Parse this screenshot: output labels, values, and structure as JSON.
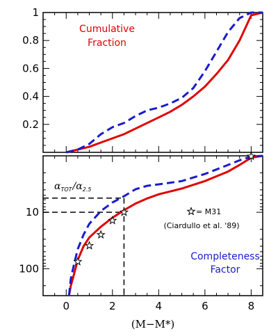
{
  "chart_data": [
    {
      "type": "line",
      "panel": "top",
      "xlim": [
        -1,
        8.5
      ],
      "ylim": [
        0,
        1
      ],
      "yticks": [
        "0.2",
        "0.4",
        "0.6",
        "0.8",
        "1"
      ],
      "annotation": [
        "Cumulative",
        "Fraction"
      ],
      "series": [
        {
          "style": "solid",
          "color": "#e00000",
          "x": [
            0,
            0.5,
            1,
            1.5,
            2,
            2.5,
            3,
            3.5,
            4,
            4.5,
            5,
            5.5,
            6,
            6.5,
            7,
            7.5,
            8,
            8.5
          ],
          "y": [
            0,
            0.02,
            0.04,
            0.07,
            0.1,
            0.13,
            0.17,
            0.21,
            0.25,
            0.29,
            0.34,
            0.4,
            0.47,
            0.56,
            0.66,
            0.8,
            0.98,
            1.0
          ]
        },
        {
          "style": "dashed",
          "color": "#1a1acc",
          "x": [
            0,
            0.5,
            1,
            1.5,
            2,
            2.5,
            3,
            3.5,
            4,
            4.5,
            5,
            5.5,
            6,
            6.5,
            7,
            7.5,
            8,
            8.5
          ],
          "y": [
            0,
            0.02,
            0.06,
            0.13,
            0.18,
            0.21,
            0.26,
            0.3,
            0.32,
            0.35,
            0.39,
            0.46,
            0.58,
            0.72,
            0.86,
            0.96,
            1.0,
            1.0
          ]
        }
      ]
    },
    {
      "type": "line",
      "panel": "bottom",
      "xlim": [
        -1,
        8.5
      ],
      "ylim": [
        1,
        300
      ],
      "yscale": "log",
      "y_inverted": true,
      "yticks": [
        "10",
        "100"
      ],
      "xticks": [
        "0",
        "2",
        "4",
        "6",
        "8"
      ],
      "xlabel": "(M−M*)",
      "ratio_label": {
        "main": "α",
        "num_sub": "TOT",
        "slash": "/",
        "den_sub": "2.5"
      },
      "legend_label": "= M31",
      "legend_ref": "(Ciardullo et al. '89)",
      "annotation": [
        "Completeness",
        "Factor"
      ],
      "guide_lines": {
        "x": 2.5,
        "y_red": 10,
        "y_blue": 5.6
      },
      "series": [
        {
          "style": "solid",
          "color": "#e00000",
          "x": [
            0.12,
            0.2,
            0.35,
            0.5,
            0.75,
            1.0,
            1.5,
            2.0,
            2.5,
            3.0,
            3.5,
            4.0,
            5.0,
            6.0,
            7.0,
            7.5,
            8.0,
            8.5
          ],
          "y": [
            300,
            200,
            120,
            70,
            40,
            28,
            18,
            12.5,
            9.2,
            7.0,
            5.7,
            4.8,
            3.8,
            2.8,
            1.9,
            1.45,
            1.08,
            1.0
          ]
        },
        {
          "style": "dashed",
          "color": "#1a1acc",
          "x": [
            0.12,
            0.2,
            0.35,
            0.5,
            0.75,
            1.0,
            1.5,
            2.0,
            2.5,
            3.0,
            3.5,
            4.0,
            5.0,
            6.0,
            7.0,
            7.5,
            8.0,
            8.5
          ],
          "y": [
            300,
            150,
            80,
            45,
            25,
            16,
            9.5,
            6.7,
            5.2,
            3.9,
            3.4,
            3.2,
            2.8,
            2.1,
            1.45,
            1.2,
            1.03,
            1.0
          ]
        },
        {
          "style": "points",
          "marker": "star",
          "x": [
            0.5,
            1.0,
            1.5,
            2.0,
            2.5,
            8.0
          ],
          "y": [
            75,
            39,
            25,
            14,
            10,
            1.02
          ]
        }
      ]
    }
  ]
}
